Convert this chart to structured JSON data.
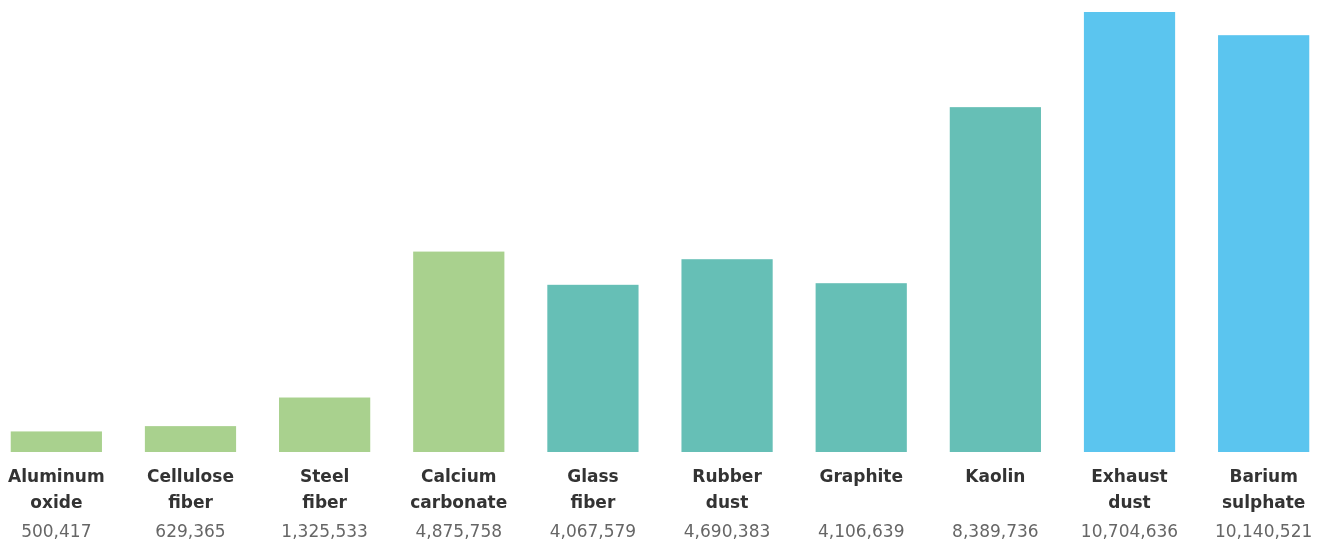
{
  "chart_data": {
    "type": "bar",
    "categories": [
      "Aluminum oxide",
      "Cellulose fiber",
      "Steel fiber",
      "Calcium carbonate",
      "Glass fiber",
      "Rubber dust",
      "Graphite",
      "Kaolin",
      "Exhaust dust",
      "Barium sulphate"
    ],
    "values": [
      500417,
      629365,
      1325533,
      4875758,
      4067579,
      4690383,
      4106639,
      8389736,
      10704636,
      10140521
    ],
    "colors": [
      "#a9d18e",
      "#a9d18e",
      "#a9d18e",
      "#a9d18e",
      "#66bfb6",
      "#66bfb6",
      "#66bfb6",
      "#66bfb6",
      "#5bc5ef",
      "#5bc5ef"
    ],
    "value_labels": [
      "500,417",
      "629,365",
      "1,325,533",
      "4,875,758",
      "4,067,579",
      "4,690,383",
      "4,106,639",
      "8,389,736",
      "10,704,636",
      "10,140,521"
    ]
  }
}
